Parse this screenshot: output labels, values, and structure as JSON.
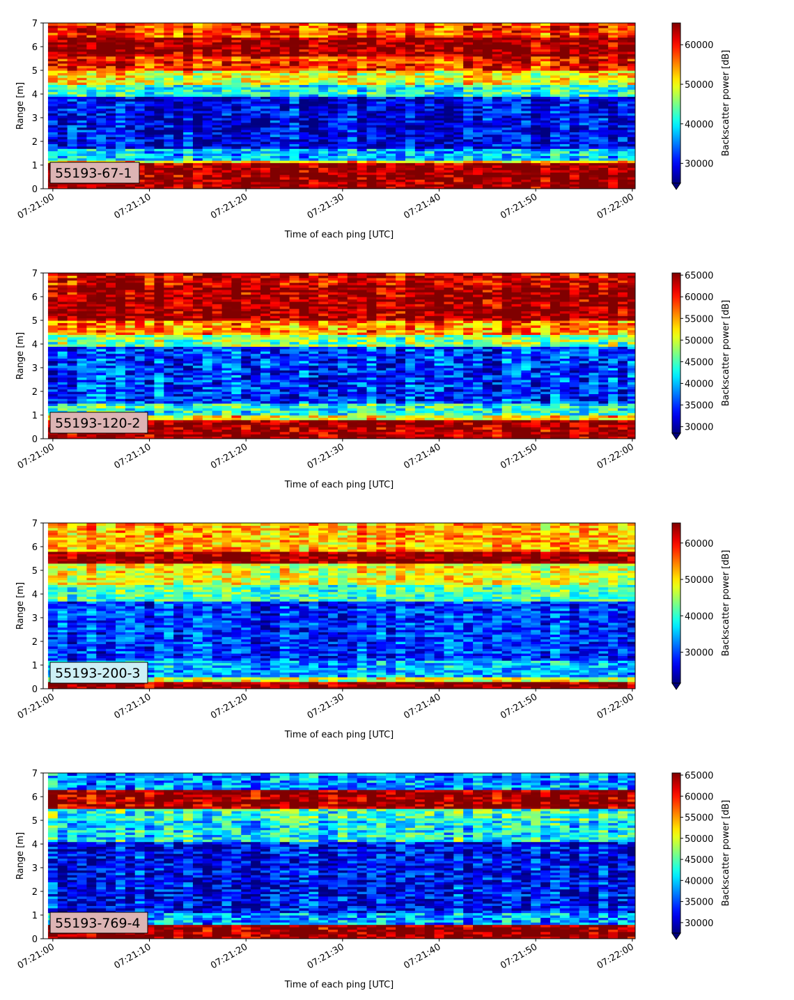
{
  "chart_data": [
    {
      "type": "heatmap",
      "label": "55193-67-1",
      "label_box_color": "#dcb4b4",
      "xlabel": "Time of each ping [UTC]",
      "ylabel": "Range [m]",
      "xticks": [
        "07:21:00",
        "07:21:10",
        "07:21:20",
        "07:21:30",
        "07:21:40",
        "07:21:50",
        "07:22:00"
      ],
      "xlim_seconds": [
        -1,
        60.3
      ],
      "ylim": [
        0,
        7
      ],
      "yticks": [
        0,
        1,
        2,
        3,
        4,
        5,
        6,
        7
      ],
      "colorbar_label": "Backscatter power [dB]",
      "colorbar_range": [
        25000,
        65500
      ],
      "colorbar_ticks": [
        30000,
        40000,
        50000,
        60000
      ],
      "colorbar_extend": "min",
      "colormap": "jet",
      "profile_key": [
        [
          0.0,
          0.22,
          65000
        ],
        [
          0.22,
          1.1,
          65000
        ],
        [
          1.1,
          1.25,
          52000
        ],
        [
          1.25,
          1.7,
          38000
        ],
        [
          1.7,
          3.95,
          29000
        ],
        [
          3.95,
          4.4,
          41000
        ],
        [
          4.4,
          5.0,
          50000
        ],
        [
          5.0,
          5.6,
          59000
        ],
        [
          5.6,
          6.4,
          65000
        ],
        [
          6.4,
          7.0,
          58000
        ]
      ]
    },
    {
      "type": "heatmap",
      "label": "55193-120-2",
      "label_box_color": "#dcb4b4",
      "xlabel": "Time of each ping [UTC]",
      "ylabel": "Range [m]",
      "xticks": [
        "07:21:00",
        "07:21:10",
        "07:21:20",
        "07:21:30",
        "07:21:40",
        "07:21:50",
        "07:22:00"
      ],
      "xlim_seconds": [
        -1,
        60.3
      ],
      "ylim": [
        0,
        7
      ],
      "yticks": [
        0,
        1,
        2,
        3,
        4,
        5,
        6,
        7
      ],
      "colorbar_label": "Backscatter power [dB]",
      "colorbar_range": [
        28500,
        65500
      ],
      "colorbar_ticks": [
        30000,
        35000,
        40000,
        45000,
        50000,
        55000,
        60000,
        65000
      ],
      "colorbar_extend": "min",
      "colormap": "jet",
      "profile_key": [
        [
          0.0,
          0.22,
          65000
        ],
        [
          0.22,
          0.8,
          65000
        ],
        [
          0.8,
          1.0,
          52000
        ],
        [
          1.0,
          1.5,
          44000
        ],
        [
          1.5,
          3.9,
          35000
        ],
        [
          3.9,
          4.4,
          47000
        ],
        [
          4.4,
          5.0,
          56000
        ],
        [
          5.0,
          6.5,
          65000
        ],
        [
          6.5,
          7.0,
          62000
        ]
      ]
    },
    {
      "type": "heatmap",
      "label": "55193-200-3",
      "label_box_color": "#cdeff5",
      "xlabel": "Time of each ping [UTC]",
      "ylabel": "Range [m]",
      "xticks": [
        "07:21:00",
        "07:21:10",
        "07:21:20",
        "07:21:30",
        "07:21:40",
        "07:21:50",
        "07:22:00"
      ],
      "xlim_seconds": [
        -1,
        60.3
      ],
      "ylim": [
        0,
        7
      ],
      "yticks": [
        0,
        1,
        2,
        3,
        4,
        5,
        6,
        7
      ],
      "colorbar_label": "Backscatter power [dB]",
      "colorbar_range": [
        21500,
        65500
      ],
      "colorbar_ticks": [
        30000,
        40000,
        50000,
        60000
      ],
      "colorbar_extend": "min",
      "colormap": "jet",
      "profile_key": [
        [
          0.0,
          0.3,
          65000
        ],
        [
          0.3,
          0.5,
          47000
        ],
        [
          0.5,
          1.2,
          35000
        ],
        [
          1.2,
          3.7,
          29000
        ],
        [
          3.7,
          4.4,
          41000
        ],
        [
          4.4,
          5.3,
          48000
        ],
        [
          5.3,
          5.8,
          65000
        ],
        [
          5.8,
          7.0,
          52000
        ]
      ]
    },
    {
      "type": "heatmap",
      "label": "55193-769-4",
      "label_box_color": "#dcb4b4",
      "xlabel": "Time of each ping [UTC]",
      "ylabel": "Range [m]",
      "xticks": [
        "07:21:00",
        "07:21:10",
        "07:21:20",
        "07:21:30",
        "07:21:40",
        "07:21:50",
        "07:22:00"
      ],
      "xlim_seconds": [
        -1,
        60.3
      ],
      "ylim": [
        0,
        7
      ],
      "yticks": [
        0,
        1,
        2,
        3,
        4,
        5,
        6,
        7
      ],
      "colorbar_label": "Backscatter power [dB]",
      "colorbar_range": [
        27500,
        65500
      ],
      "colorbar_ticks": [
        30000,
        35000,
        40000,
        45000,
        50000,
        55000,
        60000,
        65000
      ],
      "colorbar_extend": "min",
      "colormap": "jet",
      "profile_key": [
        [
          0.0,
          0.25,
          65000
        ],
        [
          0.25,
          0.65,
          65000
        ],
        [
          0.65,
          1.1,
          38000
        ],
        [
          1.1,
          4.1,
          32000
        ],
        [
          4.1,
          5.0,
          42000
        ],
        [
          5.0,
          5.5,
          44000
        ],
        [
          5.5,
          6.3,
          65000
        ],
        [
          6.3,
          7.0,
          38000
        ]
      ]
    }
  ]
}
